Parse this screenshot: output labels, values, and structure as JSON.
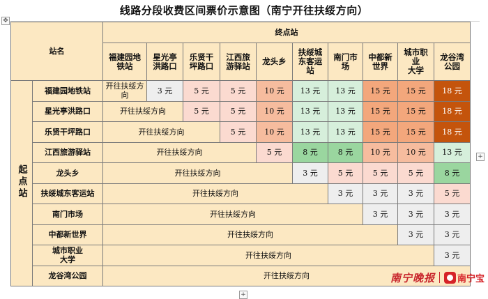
{
  "title": "线路分段收费区间票价示意图（南宁开往扶绥方向）",
  "header": {
    "station_name": "站名",
    "destination": "终点站",
    "origin": "起点站"
  },
  "direction_text": "开往扶绥方向",
  "stations": [
    {
      "id": "s1",
      "name": "福建园地铁站",
      "col_label": "福建园地\n铁站"
    },
    {
      "id": "s2",
      "name": "星光亭洪路口",
      "col_label": "星光亭\n洪路口"
    },
    {
      "id": "s3",
      "name": "乐贤干坪路口",
      "col_label": "乐贤干\n坪路口"
    },
    {
      "id": "s4",
      "name": "江西旅游驿站",
      "col_label": "江西旅\n游驿站"
    },
    {
      "id": "s5",
      "name": "龙头乡",
      "col_label": "龙头乡"
    },
    {
      "id": "s6",
      "name": "扶绥城东客运站",
      "col_label": "扶绥城\n东客运\n站"
    },
    {
      "id": "s7",
      "name": "南门市场",
      "col_label": "南门市\n场"
    },
    {
      "id": "s8",
      "name": "中都新世界",
      "col_label": "中都新\n世界"
    },
    {
      "id": "s9",
      "name": "城市职业大学",
      "col_label": "城市职\n业\n大学"
    },
    {
      "id": "s10",
      "name": "龙谷湾公园",
      "col_label": "龙谷湾\n公园"
    }
  ],
  "row_labels": [
    "福建园地铁站",
    "星光亭洪路口",
    "乐贤干坪路口",
    "江西旅游驿站",
    "龙头乡",
    "扶绥城东客运站",
    "南门市场",
    "中都新世界",
    "城市职业\n大学",
    "龙谷湾公园"
  ],
  "fares": [
    [
      null,
      "3 元",
      "5 元",
      "5 元",
      "10 元",
      "13 元",
      "13 元",
      "15 元",
      "15 元",
      "18 元"
    ],
    [
      null,
      null,
      "5 元",
      "5 元",
      "10 元",
      "13 元",
      "13 元",
      "15 元",
      "15 元",
      "18 元"
    ],
    [
      null,
      null,
      null,
      "5 元",
      "10 元",
      "13 元",
      "13 元",
      "15 元",
      "15 元",
      "18 元"
    ],
    [
      null,
      null,
      null,
      null,
      "5 元",
      "8 元",
      "8 元",
      "10 元",
      "10 元",
      "13 元"
    ],
    [
      null,
      null,
      null,
      null,
      null,
      "3 元",
      "5 元",
      "5 元",
      "5 元",
      "8 元"
    ],
    [
      null,
      null,
      null,
      null,
      null,
      null,
      "3 元",
      "3 元",
      "3 元",
      "5 元"
    ],
    [
      null,
      null,
      null,
      null,
      null,
      null,
      null,
      "3 元",
      "3 元",
      "3 元"
    ],
    [
      null,
      null,
      null,
      null,
      null,
      null,
      null,
      null,
      "3 元",
      "3 元"
    ],
    [
      null,
      null,
      null,
      null,
      null,
      null,
      null,
      null,
      null,
      "3 元"
    ],
    [
      null,
      null,
      null,
      null,
      null,
      null,
      null,
      null,
      null,
      null
    ]
  ],
  "fare_colors": {
    "3 元": "#eeeeee",
    "5 元": "#fbdad0",
    "8 元": "#9ad69f",
    "10 元": "#f6bc9e",
    "13 元": "#d6efdb",
    "15 元": "#f3a77c",
    "18 元": "#c4540c"
  },
  "colors": {
    "header_bg": "#fce8c2",
    "grid_line": "#7a7a7a",
    "brand_red": "#c8252c"
  },
  "brand": {
    "newspaper": "南宁晚报",
    "app": "南宁宝",
    "logo_icon": "nanningbao-logo-icon"
  }
}
